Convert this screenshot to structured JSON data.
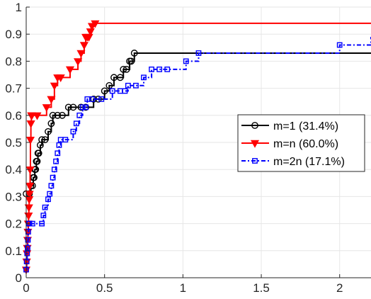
{
  "chart_data": {
    "type": "line",
    "step": true,
    "title": "",
    "xlabel": "",
    "ylabel": "",
    "xlim": [
      0,
      2.2
    ],
    "ylim": [
      0,
      1
    ],
    "xticks": [
      0,
      0.5,
      1,
      1.5,
      2
    ],
    "xtick_labels": [
      "0",
      "0.5",
      "1",
      "1.5",
      "2"
    ],
    "yticks": [
      0,
      0.1,
      0.2,
      0.3,
      0.4,
      0.5,
      0.6,
      0.7,
      0.8,
      0.9,
      1
    ],
    "ytick_labels": [
      "0",
      "0.1",
      "0.2",
      "0.3",
      "0.4",
      "0.5",
      "0.6",
      "0.7",
      "0.8",
      "0.9",
      "1"
    ],
    "grid": true,
    "legend_position": "right",
    "series": [
      {
        "name": "m=1 (31.4%)",
        "color": "#000000",
        "marker": "circle",
        "line_style": "solid",
        "x": [
          0,
          0.02,
          0.03,
          0.04,
          0.045,
          0.05,
          0.055,
          0.06,
          0.065,
          0.07,
          0.075,
          0.08,
          0.09,
          0.1,
          0.12,
          0.14,
          0.16,
          0.17,
          0.2,
          0.23,
          0.27,
          0.3,
          0.35,
          0.38,
          0.43,
          0.46,
          0.5,
          0.53,
          0.56,
          0.6,
          0.62,
          0.64,
          0.66,
          0.67,
          0.69,
          2.2
        ],
        "y": [
          0.31,
          0.31,
          0.34,
          0.34,
          0.37,
          0.37,
          0.4,
          0.4,
          0.43,
          0.43,
          0.46,
          0.46,
          0.49,
          0.51,
          0.51,
          0.54,
          0.57,
          0.6,
          0.6,
          0.6,
          0.63,
          0.63,
          0.63,
          0.63,
          0.66,
          0.66,
          0.69,
          0.71,
          0.74,
          0.74,
          0.77,
          0.77,
          0.8,
          0.8,
          0.83,
          0.83
        ]
      },
      {
        "name": "m=n (60.0%)",
        "color": "#ff0000",
        "marker": "triangle-down",
        "line_style": "solid",
        "x": [
          0,
          0.003,
          0.005,
          0.007,
          0.009,
          0.011,
          0.013,
          0.015,
          0.017,
          0.019,
          0.021,
          0.023,
          0.025,
          0.027,
          0.03,
          0.033,
          0.036,
          0.07,
          0.13,
          0.16,
          0.18,
          0.2,
          0.22,
          0.28,
          0.33,
          0.35,
          0.37,
          0.38,
          0.39,
          0.4,
          0.41,
          0.42,
          0.44,
          2.2
        ],
        "y": [
          0.03,
          0.06,
          0.09,
          0.11,
          0.14,
          0.17,
          0.2,
          0.23,
          0.26,
          0.29,
          0.31,
          0.34,
          0.4,
          0.51,
          0.57,
          0.6,
          0.6,
          0.6,
          0.63,
          0.66,
          0.71,
          0.74,
          0.74,
          0.77,
          0.8,
          0.83,
          0.86,
          0.89,
          0.89,
          0.89,
          0.91,
          0.93,
          0.94,
          0.94
        ]
      },
      {
        "name": "m=2n (17.1%)",
        "color": "#0000ff",
        "marker": "square",
        "line_style": "dash-dot",
        "x": [
          0,
          0.003,
          0.006,
          0.009,
          0.011,
          0.013,
          0.015,
          0.017,
          0.02,
          0.04,
          0.1,
          0.11,
          0.12,
          0.14,
          0.15,
          0.16,
          0.17,
          0.18,
          0.19,
          0.2,
          0.21,
          0.22,
          0.25,
          0.3,
          0.32,
          0.34,
          0.36,
          0.38,
          0.39,
          0.42,
          0.48,
          0.55,
          0.6,
          0.63,
          0.65,
          0.7,
          0.75,
          0.8,
          0.85,
          0.9,
          1.02,
          1.1,
          2.0,
          2.2
        ],
        "y": [
          0.03,
          0.06,
          0.09,
          0.11,
          0.14,
          0.17,
          0.2,
          0.2,
          0.2,
          0.2,
          0.2,
          0.23,
          0.26,
          0.29,
          0.31,
          0.34,
          0.37,
          0.4,
          0.43,
          0.46,
          0.49,
          0.51,
          0.51,
          0.54,
          0.57,
          0.6,
          0.63,
          0.63,
          0.66,
          0.66,
          0.66,
          0.69,
          0.69,
          0.69,
          0.71,
          0.71,
          0.74,
          0.77,
          0.77,
          0.77,
          0.8,
          0.83,
          0.86,
          0.89
        ]
      }
    ]
  }
}
